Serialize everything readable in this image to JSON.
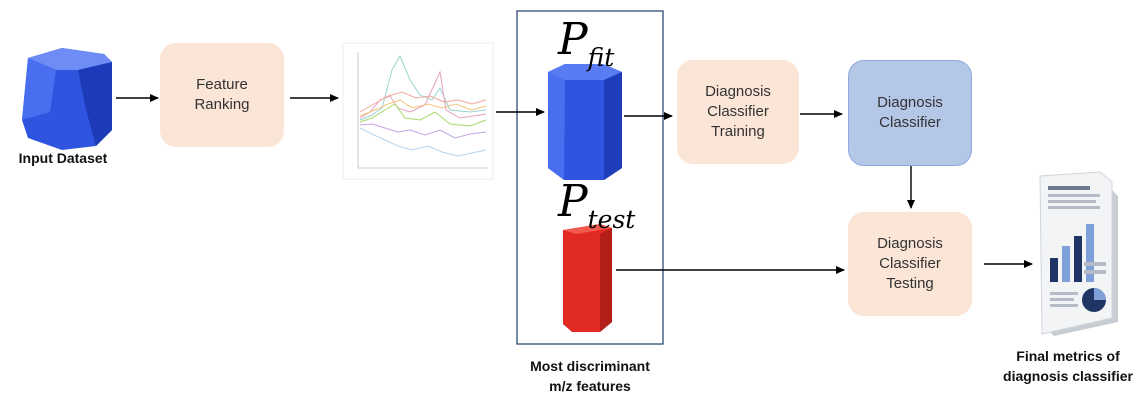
{
  "input": {
    "label": "Input Dataset"
  },
  "feature_ranking": {
    "label": "Feature\nRanking"
  },
  "p_fit": {
    "symbol": "P",
    "subscript": "fit"
  },
  "p_test": {
    "symbol": "P",
    "subscript": "test"
  },
  "features_caption": "Most discriminant\nm/z features",
  "training": {
    "label": "Diagnosis\nClassifier\nTraining"
  },
  "classifier": {
    "label": "Diagnosis\nClassifier"
  },
  "testing": {
    "label": "Diagnosis\nClassifier\nTesting"
  },
  "final_caption": "Final metrics of\ndiagnosis classifier",
  "colors": {
    "peach_box": "#fbe5d6",
    "blue_box": "#b4c7e7",
    "cube_blue": "#2f55e0",
    "prism_red": "#e02a22",
    "frame": "#2e4b7a"
  },
  "icons": [
    "blue-cube-icon",
    "spectra-plot-icon",
    "blue-prism-icon",
    "red-prism-icon",
    "report-document-icon"
  ]
}
